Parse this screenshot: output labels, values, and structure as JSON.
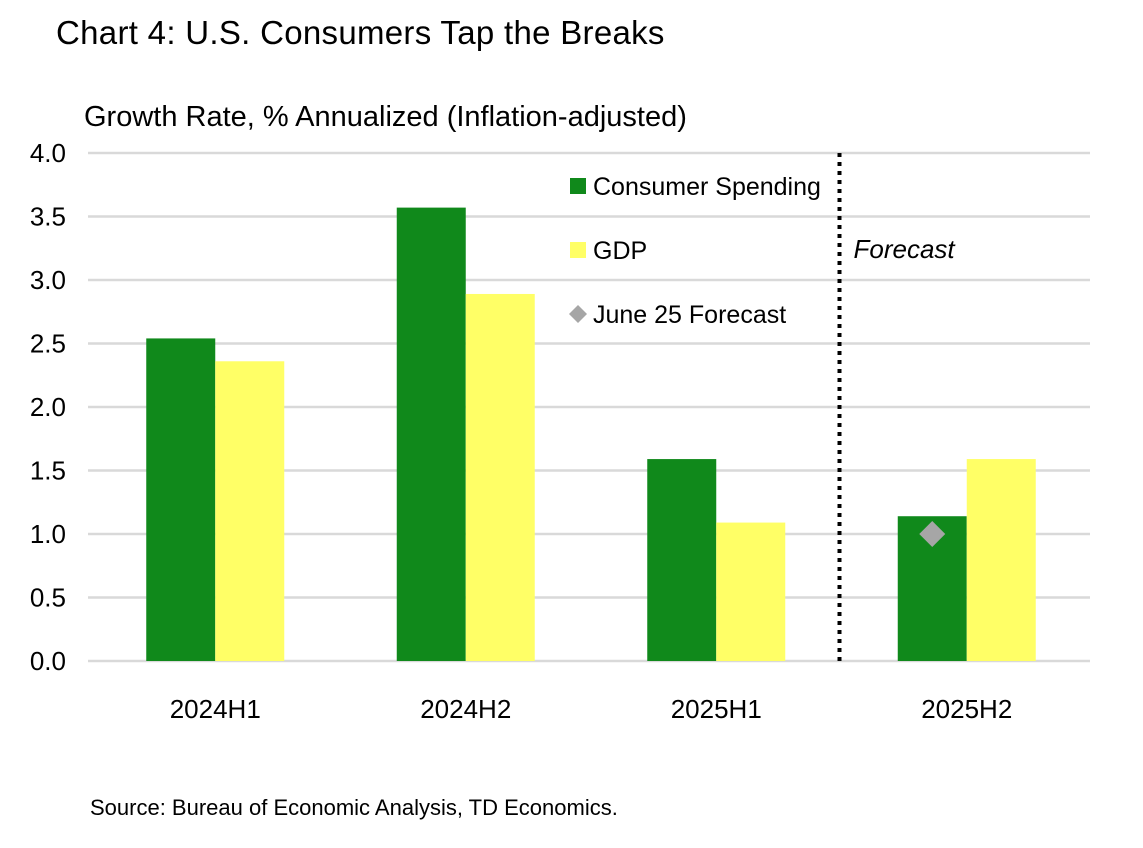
{
  "title": "Chart 4: U.S. Consumers Tap the Breaks",
  "source": "Source: Bureau of Economic Analysis, TD Economics.",
  "chart_data": {
    "type": "bar",
    "title": "Chart 4: U.S. Consumers Tap the Breaks",
    "xlabel": "",
    "ylabel": "Growth Rate, % Annualized (Inflation-adjusted)",
    "ylim": [
      0,
      4
    ],
    "yticks": [
      "0.0",
      "0.5",
      "1.0",
      "1.5",
      "2.0",
      "2.5",
      "3.0",
      "3.5",
      "4.0"
    ],
    "grid": true,
    "categories": [
      "2024H1",
      "2024H2",
      "2025H1",
      "2025H2"
    ],
    "series": [
      {
        "name": "Consumer Spending",
        "color": "#10891b",
        "values": [
          2.54,
          3.57,
          1.59,
          1.14
        ]
      },
      {
        "name": "GDP",
        "color": "#ffff66",
        "values": [
          2.36,
          2.89,
          1.09,
          1.59
        ]
      }
    ],
    "markers": [
      {
        "name": "June 25 Forecast",
        "color": "#a6a6a6",
        "category": "2025H2",
        "value": 1.0
      }
    ],
    "annotations": [
      {
        "text": "Forecast",
        "style": "italic",
        "divider": "dotted line between 2025H1 and 2025H2"
      }
    ],
    "legend_position": "top-right"
  }
}
